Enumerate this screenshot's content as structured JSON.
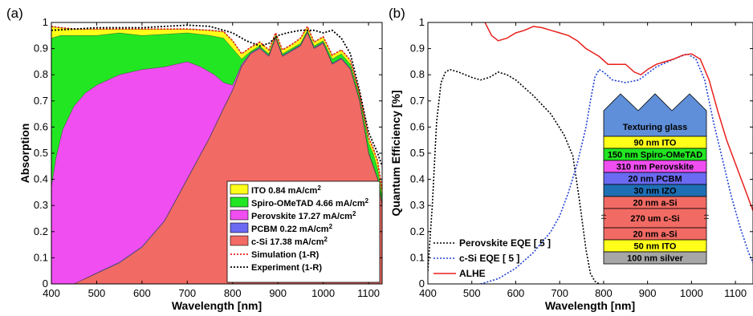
{
  "panel_a": {
    "label": "(a)",
    "chart_data": {
      "type": "area",
      "xlabel": "Wavelength [nm]",
      "ylabel": "Absorption",
      "xlim": [
        400,
        1130
      ],
      "ylim": [
        0,
        1
      ],
      "xticks": [
        "400",
        "500",
        "600",
        "700",
        "800",
        "900",
        "1000",
        "1100"
      ],
      "yticks": [
        "0",
        "0.1",
        "0.2",
        "0.3",
        "0.4",
        "0.5",
        "0.6",
        "0.7",
        "0.8",
        "0.9",
        "1"
      ],
      "legend_position": "bottom-right",
      "layers": [
        {
          "name": "c-Si 17.38 mA/cm",
          "sup": "2",
          "color": "#f26a64",
          "x": [
            400,
            450,
            500,
            550,
            600,
            650,
            700,
            750,
            780,
            800,
            820,
            840,
            860,
            880,
            895,
            910,
            930,
            950,
            965,
            980,
            1000,
            1020,
            1040,
            1060,
            1080,
            1100,
            1110,
            1120,
            1130
          ],
          "top": [
            0,
            0,
            0.04,
            0.08,
            0.14,
            0.24,
            0.4,
            0.56,
            0.67,
            0.74,
            0.83,
            0.88,
            0.9,
            0.87,
            0.94,
            0.87,
            0.89,
            0.91,
            0.96,
            0.9,
            0.92,
            0.84,
            0.86,
            0.82,
            0.7,
            0.5,
            0.45,
            0.4,
            0.3
          ]
        },
        {
          "name": "PCBM 0.22 mA/cm",
          "sup": "2",
          "color": "#6a6af2",
          "x": [
            400,
            450,
            500,
            550,
            600,
            650,
            700,
            750,
            780,
            800,
            820,
            840,
            860,
            880,
            895,
            910,
            930,
            950,
            965,
            980,
            1000,
            1020,
            1040,
            1060,
            1080,
            1100,
            1110,
            1120,
            1130
          ],
          "top": [
            0,
            0,
            0.042,
            0.083,
            0.143,
            0.243,
            0.403,
            0.563,
            0.673,
            0.743,
            0.833,
            0.883,
            0.903,
            0.873,
            0.943,
            0.873,
            0.893,
            0.913,
            0.963,
            0.903,
            0.923,
            0.843,
            0.863,
            0.823,
            0.703,
            0.503,
            0.453,
            0.403,
            0.303
          ]
        },
        {
          "name": "Perovskite 17.27 mA/cm",
          "sup": "2",
          "color": "#f04ef0",
          "x": [
            400,
            410,
            425,
            450,
            475,
            500,
            550,
            600,
            650,
            700,
            730,
            760,
            780,
            800,
            820,
            840,
            860,
            880,
            895,
            910,
            930,
            950,
            965,
            980,
            1000,
            1020,
            1040,
            1060,
            1080,
            1100,
            1110,
            1120,
            1130
          ],
          "top": [
            0.37,
            0.48,
            0.59,
            0.68,
            0.73,
            0.76,
            0.8,
            0.82,
            0.83,
            0.85,
            0.83,
            0.8,
            0.77,
            0.76,
            0.84,
            0.884,
            0.904,
            0.874,
            0.944,
            0.874,
            0.894,
            0.914,
            0.964,
            0.904,
            0.924,
            0.844,
            0.864,
            0.824,
            0.704,
            0.504,
            0.454,
            0.404,
            0.304
          ]
        },
        {
          "name": "Spiro-OMeTAD 4.66 mA/cm",
          "sup": "2",
          "color": "#22e622",
          "x": [
            400,
            420,
            450,
            500,
            550,
            600,
            650,
            700,
            750,
            780,
            800,
            820,
            840,
            860,
            880,
            895,
            910,
            930,
            950,
            965,
            980,
            1000,
            1020,
            1040,
            1060,
            1080,
            1100,
            1110,
            1120,
            1130
          ],
          "top": [
            0.94,
            0.95,
            0.95,
            0.95,
            0.96,
            0.95,
            0.955,
            0.96,
            0.95,
            0.94,
            0.9,
            0.86,
            0.89,
            0.91,
            0.88,
            0.95,
            0.88,
            0.9,
            0.92,
            0.97,
            0.91,
            0.93,
            0.86,
            0.88,
            0.84,
            0.72,
            0.54,
            0.5,
            0.44,
            0.33
          ]
        },
        {
          "name": "ITO 0.84 mA/cm",
          "sup": "2",
          "color": "#ffff1a",
          "x": [
            400,
            420,
            450,
            500,
            550,
            600,
            650,
            700,
            750,
            780,
            800,
            820,
            840,
            860,
            880,
            895,
            910,
            930,
            950,
            965,
            980,
            1000,
            1020,
            1040,
            1060,
            1080,
            1100,
            1110,
            1120,
            1130
          ],
          "top": [
            0.985,
            0.98,
            0.975,
            0.975,
            0.975,
            0.975,
            0.975,
            0.975,
            0.97,
            0.965,
            0.93,
            0.88,
            0.905,
            0.925,
            0.895,
            0.96,
            0.895,
            0.915,
            0.94,
            0.985,
            0.925,
            0.945,
            0.875,
            0.895,
            0.855,
            0.73,
            0.56,
            0.52,
            0.47,
            0.36
          ]
        }
      ],
      "series": [
        {
          "name": "Simulation (1-R)",
          "color": "#e8201c",
          "style": "dotted",
          "x": [
            400,
            420,
            450,
            500,
            550,
            600,
            650,
            700,
            750,
            780,
            800,
            820,
            840,
            860,
            880,
            895,
            910,
            930,
            950,
            965,
            980,
            1000,
            1020,
            1040,
            1060,
            1080,
            1100,
            1110,
            1120,
            1130
          ],
          "y": [
            0.985,
            0.98,
            0.975,
            0.975,
            0.975,
            0.975,
            0.975,
            0.975,
            0.97,
            0.965,
            0.93,
            0.88,
            0.905,
            0.925,
            0.895,
            0.96,
            0.895,
            0.915,
            0.94,
            0.985,
            0.925,
            0.945,
            0.875,
            0.895,
            0.855,
            0.73,
            0.56,
            0.52,
            0.47,
            0.36
          ]
        },
        {
          "name": "Experiment (1-R)",
          "color": "#000000",
          "style": "dotted",
          "x": [
            400,
            450,
            500,
            550,
            600,
            650,
            700,
            750,
            800,
            830,
            860,
            880,
            900,
            920,
            950,
            980,
            1000,
            1020,
            1040,
            1060,
            1080,
            1100,
            1120,
            1130
          ],
          "y": [
            0.97,
            0.975,
            0.98,
            0.98,
            0.98,
            0.985,
            0.99,
            0.985,
            0.96,
            0.93,
            0.91,
            0.92,
            0.95,
            0.96,
            0.97,
            0.97,
            0.96,
            0.97,
            0.94,
            0.88,
            0.74,
            0.58,
            0.5,
            0.45
          ]
        }
      ]
    }
  },
  "panel_b": {
    "label": "(b)",
    "chart_data": {
      "type": "line",
      "xlabel": "Wavelength [nm]",
      "ylabel": "Quantum Efficiency [%]",
      "xlim": [
        400,
        1140
      ],
      "ylim": [
        0,
        1
      ],
      "xticks": [
        "400",
        "500",
        "600",
        "700",
        "800",
        "900",
        "1000",
        "1100"
      ],
      "yticks": [
        "0",
        "0.1",
        "0.2",
        "0.3",
        "0.4",
        "0.5",
        "0.6",
        "0.7",
        "0.8",
        "0.9",
        "1"
      ],
      "legend_position": "bottom-left",
      "series": [
        {
          "name": "Perovskite EQE [ 5 ]",
          "color": "#000000",
          "style": "dotted",
          "x": [
            400,
            410,
            420,
            430,
            440,
            450,
            470,
            500,
            520,
            540,
            560,
            580,
            600,
            640,
            680,
            710,
            730,
            745,
            760,
            770,
            780,
            790
          ],
          "y": [
            0.05,
            0.3,
            0.62,
            0.77,
            0.81,
            0.82,
            0.81,
            0.79,
            0.78,
            0.79,
            0.81,
            0.8,
            0.78,
            0.72,
            0.65,
            0.57,
            0.49,
            0.32,
            0.13,
            0.04,
            0.01,
            0
          ]
        },
        {
          "name": "c-Si EQE [ 5 ]",
          "color": "#1f3fd8",
          "style": "dotted",
          "x": [
            520,
            560,
            600,
            640,
            680,
            700,
            720,
            740,
            760,
            770,
            780,
            790,
            800,
            820,
            850,
            880,
            920,
            960,
            990,
            1010,
            1030,
            1050,
            1070,
            1090,
            1110,
            1130,
            1140
          ],
          "y": [
            0,
            0.02,
            0.06,
            0.12,
            0.2,
            0.26,
            0.35,
            0.46,
            0.6,
            0.7,
            0.79,
            0.82,
            0.81,
            0.78,
            0.77,
            0.78,
            0.83,
            0.86,
            0.88,
            0.86,
            0.78,
            0.62,
            0.48,
            0.34,
            0.22,
            0.12,
            0.08
          ]
        },
        {
          "name": "ALHE",
          "color": "#e8201c",
          "style": "solid",
          "x": [
            530,
            545,
            560,
            580,
            600,
            620,
            640,
            660,
            680,
            700,
            720,
            740,
            760,
            790,
            810,
            830,
            850,
            870,
            885,
            900,
            920,
            940,
            960,
            980,
            1000,
            1020,
            1040,
            1060,
            1080,
            1100,
            1120,
            1140
          ],
          "y": [
            1.0,
            0.95,
            0.93,
            0.94,
            0.96,
            0.97,
            0.985,
            0.98,
            0.97,
            0.96,
            0.95,
            0.93,
            0.9,
            0.87,
            0.84,
            0.84,
            0.84,
            0.81,
            0.8,
            0.82,
            0.84,
            0.85,
            0.86,
            0.875,
            0.88,
            0.86,
            0.78,
            0.66,
            0.55,
            0.46,
            0.37,
            0.28
          ]
        }
      ],
      "inset_stack": {
        "top_label": "Texturing glass",
        "top_color": "#5f8fd9",
        "layers": [
          {
            "label": "90 nm ITO",
            "color": "#ffff1a"
          },
          {
            "label": "150 nm Spiro-OMeTAD",
            "color": "#22e622"
          },
          {
            "label": "310 nm Perovskite",
            "color": "#f04ef0"
          },
          {
            "label": "20 nm PCBM",
            "color": "#6a6af2"
          },
          {
            "label": "30 nm IZO",
            "color": "#1f6fb5"
          },
          {
            "label": "20 nm a-Si",
            "color": "#f26a64"
          },
          {
            "label": "270 um c-Si",
            "color": "#f26a64"
          },
          {
            "label": "20 nm a-Si",
            "color": "#f26a64"
          },
          {
            "label": "50 nm ITO",
            "color": "#ffff1a"
          },
          {
            "label": "100 nm silver",
            "color": "#a6a6a6"
          }
        ]
      }
    }
  }
}
